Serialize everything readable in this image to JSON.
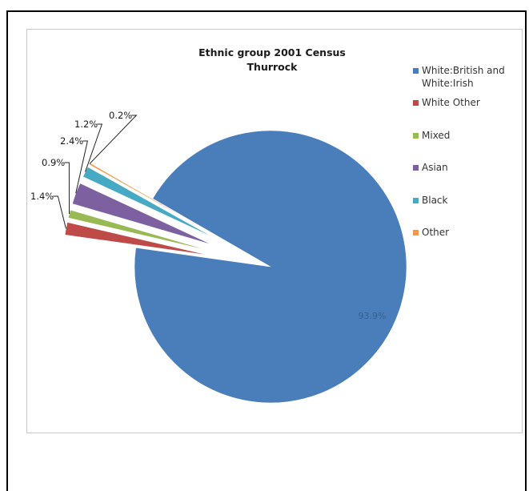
{
  "chart_data": {
    "type": "pie",
    "title": "Ethnic group 2001 Census",
    "subtitle": "Thurrock",
    "legend_position": "right",
    "slices": [
      {
        "label": "White:British and White:Irish",
        "value": 93.9,
        "data_label": "93.9%",
        "color": "#4a7ebb"
      },
      {
        "label": "White Other",
        "value": 1.4,
        "data_label": "1.4%",
        "color": "#be4b48"
      },
      {
        "label": "Mixed",
        "value": 0.9,
        "data_label": "0.9%",
        "color": "#98b954"
      },
      {
        "label": "Asian",
        "value": 2.4,
        "data_label": "2.4%",
        "color": "#7d60a0"
      },
      {
        "label": "Black",
        "value": 1.2,
        "data_label": "1.2%",
        "color": "#46aac5"
      },
      {
        "label": "Other",
        "value": 0.2,
        "data_label": "0.2%",
        "color": "#f79646"
      }
    ]
  }
}
